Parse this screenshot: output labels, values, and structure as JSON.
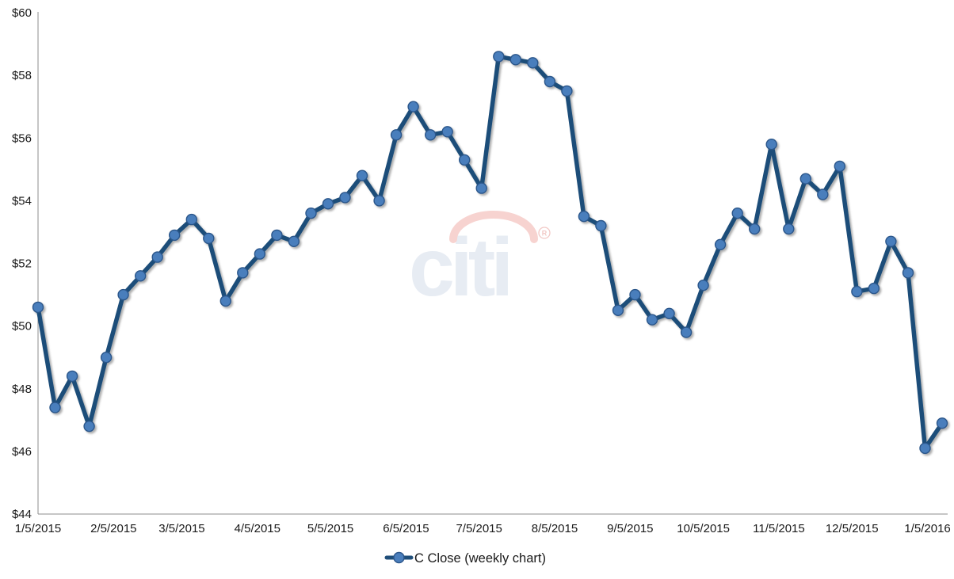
{
  "chart_data": {
    "type": "line",
    "title": "",
    "xlabel": "",
    "ylabel": "",
    "grid": false,
    "legend_position": "bottom-center",
    "ylim": [
      44,
      60
    ],
    "y_tick_values": [
      44,
      46,
      48,
      50,
      52,
      54,
      56,
      58,
      60
    ],
    "y_tick_labels": [
      "$44",
      "$46",
      "$48",
      "$50",
      "$52",
      "$54",
      "$56",
      "$58",
      "$60"
    ],
    "x_tick_labels": [
      "1/5/2015",
      "2/5/2015",
      "3/5/2015",
      "4/5/2015",
      "5/5/2015",
      "6/5/2015",
      "7/5/2015",
      "8/5/2015",
      "9/5/2015",
      "10/5/2015",
      "11/5/2015",
      "12/5/2015",
      "1/5/2016"
    ],
    "series": [
      {
        "name": "C Close (weekly chart)",
        "x": [
          "1/5/2015",
          "1/12/2015",
          "1/19/2015",
          "1/26/2015",
          "2/2/2015",
          "2/9/2015",
          "2/16/2015",
          "2/23/2015",
          "3/2/2015",
          "3/9/2015",
          "3/16/2015",
          "3/23/2015",
          "3/30/2015",
          "4/6/2015",
          "4/13/2015",
          "4/20/2015",
          "4/27/2015",
          "5/4/2015",
          "5/11/2015",
          "5/18/2015",
          "5/25/2015",
          "6/1/2015",
          "6/8/2015",
          "6/15/2015",
          "6/22/2015",
          "6/29/2015",
          "7/6/2015",
          "7/13/2015",
          "7/20/2015",
          "7/27/2015",
          "8/3/2015",
          "8/10/2015",
          "8/17/2015",
          "8/24/2015",
          "8/31/2015",
          "9/7/2015",
          "9/14/2015",
          "9/21/2015",
          "9/28/2015",
          "10/5/2015",
          "10/12/2015",
          "10/19/2015",
          "10/26/2015",
          "11/2/2015",
          "11/9/2015",
          "11/16/2015",
          "11/23/2015",
          "11/30/2015",
          "12/7/2015",
          "12/14/2015",
          "12/21/2015",
          "12/28/2015",
          "1/4/2016",
          "1/11/2016"
        ],
        "values": [
          50.6,
          47.4,
          48.4,
          46.8,
          49.0,
          51.0,
          51.6,
          52.2,
          52.9,
          53.4,
          52.8,
          50.8,
          51.7,
          52.3,
          52.9,
          52.7,
          53.6,
          53.9,
          54.1,
          54.8,
          54.0,
          56.1,
          57.0,
          56.1,
          56.2,
          55.3,
          54.4,
          58.6,
          58.5,
          58.4,
          57.8,
          57.5,
          53.5,
          53.2,
          50.5,
          51.0,
          50.2,
          50.4,
          49.8,
          51.3,
          52.6,
          53.6,
          53.1,
          55.8,
          53.1,
          54.7,
          54.2,
          55.1,
          51.1,
          51.2,
          52.7,
          51.7,
          46.1,
          46.9
        ]
      }
    ],
    "colors": {
      "line": "#1f4e79",
      "marker_fill": "#4a7ebc",
      "marker_stroke": "#2c568a",
      "axis": "#8c8c8c",
      "label_text": "#1a1a1a"
    }
  },
  "legend": {
    "label": "C Close (weekly chart)"
  },
  "watermark": {
    "text": "citi",
    "registered_mark": "®",
    "text_color": "#e7ecf3",
    "arc_color": "#f7d3d0",
    "mark_color": "#f2c9c6"
  }
}
